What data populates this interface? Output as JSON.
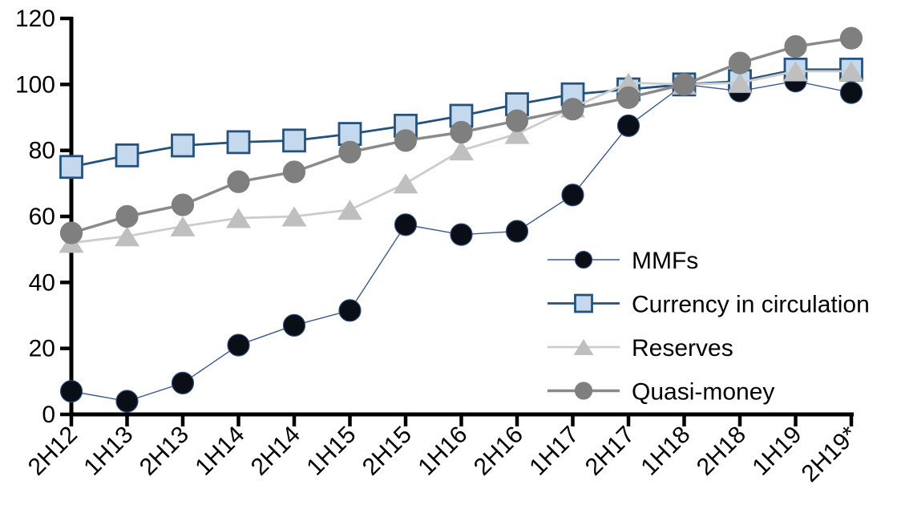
{
  "chart_data": {
    "type": "line",
    "title": "",
    "xlabel": "",
    "ylabel": "",
    "categories": [
      "2H12",
      "1H13",
      "2H13",
      "1H14",
      "2H14",
      "1H15",
      "2H15",
      "1H16",
      "2H16",
      "1H17",
      "2H17",
      "1H18",
      "2H18",
      "1H19",
      "2H19*"
    ],
    "series": [
      {
        "name": "MMFs",
        "marker": "circle",
        "marker_color": "#0a0e17",
        "marker_border": "#2e4d7b",
        "line_color": "#3a5a8c",
        "line_width": 1.4,
        "values": [
          7,
          4,
          9.5,
          21,
          27,
          31.5,
          57.5,
          54.5,
          55.5,
          66.5,
          87.5,
          100,
          98,
          101,
          97.5
        ]
      },
      {
        "name": "Currency in circulation",
        "marker": "square",
        "marker_color": "#c5d9ee",
        "marker_border": "#24527c",
        "line_color": "#24527c",
        "line_width": 2.8,
        "values": [
          75,
          78.5,
          81.5,
          82.5,
          83,
          85,
          87.5,
          90.5,
          94,
          97,
          98.5,
          100,
          101,
          104.5,
          104.5
        ]
      },
      {
        "name": "Reserves",
        "marker": "triangle",
        "marker_color": "#bfbfbf",
        "marker_border": "#bfbfbf",
        "line_color": "#cccccc",
        "line_width": 2.8,
        "values": [
          52,
          54,
          57,
          59.5,
          60,
          62,
          70,
          80,
          85,
          93,
          100.5,
          100,
          100.5,
          104,
          104
        ]
      },
      {
        "name": "Quasi-money",
        "marker": "circle",
        "marker_color": "#7f7f7f",
        "marker_border": "#7f7f7f",
        "line_color": "#8a8a8a",
        "line_width": 3.5,
        "values": [
          55,
          60,
          63.5,
          70.5,
          73.5,
          79.5,
          83,
          85.5,
          89,
          92.5,
          96,
          100,
          106.5,
          111.5,
          114
        ]
      }
    ],
    "y_axis": {
      "min": 0,
      "max": 120,
      "step": 20,
      "tick_labels": [
        "0",
        "20",
        "40",
        "60",
        "80",
        "100",
        "120"
      ]
    },
    "x_axis": {
      "label_rotation_deg": -45
    },
    "legend": {
      "position": "inside-right",
      "items": [
        "MMFs",
        "Currency in circulation",
        "Reserves",
        "Quasi-money"
      ]
    },
    "grid": "off",
    "axis_color": "#000000"
  }
}
